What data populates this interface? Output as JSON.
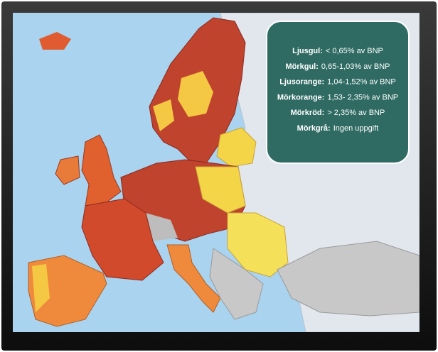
{
  "legend": {
    "items": [
      {
        "term": "Ljusgul:",
        "text": "< 0,65% av BNP"
      },
      {
        "term": "Mörkgul:",
        "text": "0,65-1,03% av BNP"
      },
      {
        "term": "Ljusorange:",
        "text": "1,04-1,52% av BNP"
      },
      {
        "term": "Mörkorange:",
        "text": "1,53- 2,35% av BNP"
      },
      {
        "term": "Mörkröd:",
        "text": "> 2,35% av BNP"
      },
      {
        "term": "Mörkgrå:",
        "text": "Ingen uppgift"
      }
    ]
  }
}
